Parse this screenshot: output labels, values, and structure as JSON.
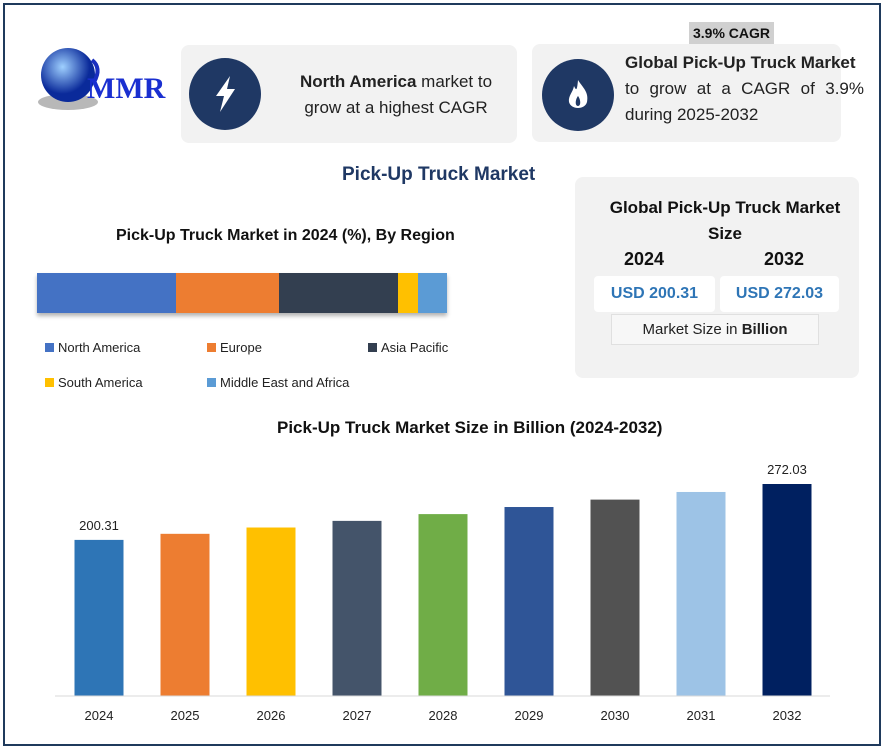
{
  "logo": {
    "text": "MMR"
  },
  "cagr_badge": "3.9% CAGR",
  "card_left": {
    "bold": "North America",
    "text1": " market to",
    "text2": "grow at a highest CAGR",
    "icon": "lightning-icon"
  },
  "card_right": {
    "bold": "Global Pick-Up Truck Market",
    "text": "to grow at a CAGR of 3.9% during 2025-2032",
    "icon": "flame-icon"
  },
  "main_title": "Pick-Up Truck Market",
  "size_card": {
    "title": "Global Pick-Up Truck Market Size",
    "year1": "2024",
    "year2": "2032",
    "value1": "USD 200.31",
    "value2": "USD 272.03",
    "unit_prefix": "Market Size in ",
    "unit_bold": "Billion"
  },
  "chart_data": [
    {
      "type": "bar",
      "stacked": true,
      "orientation": "horizontal",
      "title": "Pick-Up Truck Market in 2024 (%), By Region",
      "series": [
        {
          "name": "North America",
          "value": 34,
          "color": "#4472c4"
        },
        {
          "name": "Europe",
          "value": 25,
          "color": "#ed7d31"
        },
        {
          "name": "Asia Pacific",
          "value": 29,
          "color": "#333f50"
        },
        {
          "name": "South America",
          "value": 5,
          "color": "#ffc000"
        },
        {
          "name": "Middle East and Africa",
          "value": 7,
          "color": "#5b9bd5"
        }
      ],
      "legend": "bottom"
    },
    {
      "type": "bar",
      "title": "Pick-Up Truck Market Size in Billion (2024-2032)",
      "categories": [
        "2024",
        "2025",
        "2026",
        "2027",
        "2028",
        "2029",
        "2030",
        "2031",
        "2032"
      ],
      "values": [
        200.31,
        208.1,
        216.2,
        224.7,
        233.4,
        242.5,
        252.0,
        261.8,
        272.03
      ],
      "data_labels": {
        "0": "200.31",
        "8": "272.03"
      },
      "colors": [
        "#2e75b6",
        "#ed7d31",
        "#ffc000",
        "#44546a",
        "#70ad47",
        "#2f5597",
        "#525252",
        "#9dc3e6",
        "#002060"
      ],
      "ylim": [
        0,
        272.03
      ],
      "grid": false
    }
  ]
}
